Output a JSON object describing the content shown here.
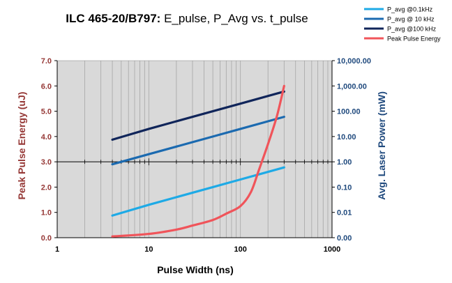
{
  "chart_data": {
    "type": "line",
    "title_bold": "ILC 465-20/B797:",
    "title_rest": " E_pulse, P_Avg vs. t_pulse",
    "xlabel": "Pulse Width (ns)",
    "ylabel_left": "Peak Pulse Energy (uJ)",
    "ylabel_right": "Avg. Laser Power (mW)",
    "x_scale": "log",
    "xlim": [
      1,
      1000
    ],
    "x_tick_labels": [
      "1",
      "10",
      "100",
      "1000"
    ],
    "y_left_lim": [
      0,
      7
    ],
    "y_left_tick_labels": [
      "0.0",
      "1.0",
      "2.0",
      "3.0",
      "4.0",
      "5.0",
      "6.0",
      "7.0"
    ],
    "y_right_scale": "log",
    "y_right_tick_labels": [
      "0.00",
      "0.01",
      "0.10",
      "1.00",
      "10.00",
      "100.00",
      "1,000.00",
      "10,000.00"
    ],
    "grid": true,
    "legend_position": "top-right",
    "colors": {
      "left_axis_text": "#953735",
      "right_axis_text": "#1f497d",
      "plot_background": "#d9d9d9"
    },
    "series": [
      {
        "name": "P_avg @0.1kHz",
        "axis": "right",
        "color": "#1eaae6",
        "x": [
          4,
          10,
          20,
          50,
          100,
          200,
          300
        ],
        "y": [
          0.0075,
          0.02,
          0.04,
          0.1,
          0.2,
          0.4,
          0.6
        ]
      },
      {
        "name": "P_avg @ 10 kHz",
        "axis": "right",
        "color": "#1b6ab0",
        "x": [
          4,
          10,
          20,
          50,
          100,
          200,
          300
        ],
        "y": [
          0.8,
          2,
          4,
          10,
          20,
          40,
          60
        ]
      },
      {
        "name": "P_avg @100 kHz",
        "axis": "right",
        "color": "#10255a",
        "x": [
          4,
          10,
          20,
          50,
          100,
          200,
          300
        ],
        "y": [
          7.5,
          20,
          40,
          100,
          200,
          400,
          600
        ]
      },
      {
        "name": "Peak Pulse Energy",
        "axis": "left",
        "color": "#f0545a",
        "x": [
          4,
          10,
          20,
          30,
          50,
          70,
          100,
          130,
          160,
          200,
          250,
          300
        ],
        "y": [
          0.05,
          0.15,
          0.32,
          0.48,
          0.7,
          0.95,
          1.25,
          1.8,
          2.7,
          3.7,
          4.8,
          6.0
        ]
      }
    ]
  }
}
